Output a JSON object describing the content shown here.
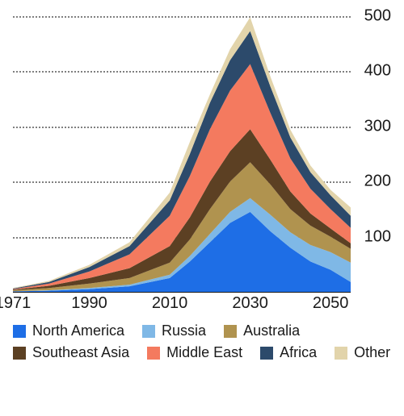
{
  "chart": {
    "type": "stacked-area",
    "xlim": [
      1971,
      2055
    ],
    "ylim": [
      0,
      500
    ],
    "xticks": [
      1971,
      1990,
      2010,
      2030,
      2050
    ],
    "yticks": [
      100,
      200,
      300,
      400,
      500
    ],
    "grid_color": "#808080",
    "axis_color": "#1a1a1a",
    "label_fontsize": 20,
    "label_color": "#1a1a1a",
    "background_color": "#ffffff",
    "x_values": [
      1971,
      1980,
      1990,
      2000,
      2010,
      2015,
      2020,
      2025,
      2030,
      2035,
      2040,
      2045,
      2050,
      2055
    ],
    "series": [
      {
        "name": "North America",
        "color": "#1e6ee6",
        "values": [
          1,
          2,
          5,
          10,
          25,
          55,
          90,
          125,
          145,
          110,
          80,
          55,
          40,
          18
        ]
      },
      {
        "name": "Russia",
        "color": "#7fb8e6",
        "values": [
          0,
          1,
          2,
          3,
          6,
          10,
          15,
          20,
          25,
          30,
          28,
          30,
          32,
          35
        ]
      },
      {
        "name": "Australia",
        "color": "#b0934f",
        "values": [
          2,
          4,
          8,
          12,
          22,
          30,
          45,
          55,
          65,
          55,
          42,
          35,
          28,
          25
        ]
      },
      {
        "name": "Southeast Asia",
        "color": "#5c4023",
        "values": [
          1,
          4,
          10,
          18,
          30,
          40,
          50,
          55,
          60,
          45,
          32,
          22,
          15,
          10
        ]
      },
      {
        "name": "Middle East",
        "color": "#f47a5f",
        "values": [
          1,
          4,
          12,
          25,
          55,
          75,
          95,
          110,
          118,
          85,
          60,
          45,
          35,
          28
        ]
      },
      {
        "name": "Africa",
        "color": "#2c4a6b",
        "values": [
          1,
          3,
          8,
          15,
          28,
          40,
          48,
          55,
          60,
          48,
          38,
          30,
          25,
          22
        ]
      },
      {
        "name": "Other",
        "color": "#e2d4ab",
        "values": [
          1,
          2,
          4,
          7,
          14,
          22,
          15,
          20,
          25,
          18,
          14,
          12,
          10,
          15
        ]
      }
    ]
  },
  "legend_fontsize": 18
}
